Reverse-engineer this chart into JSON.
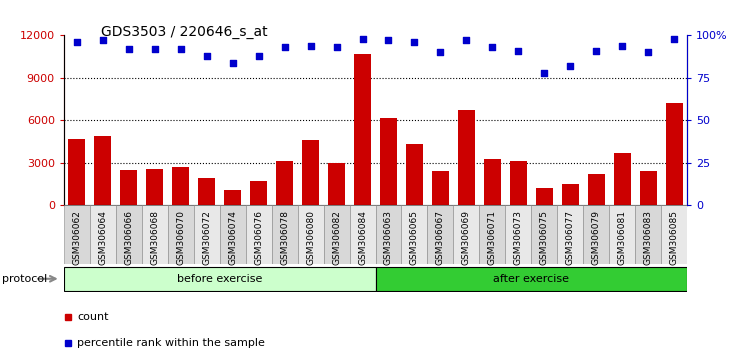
{
  "title": "GDS3503 / 220646_s_at",
  "samples": [
    "GSM306062",
    "GSM306064",
    "GSM306066",
    "GSM306068",
    "GSM306070",
    "GSM306072",
    "GSM306074",
    "GSM306076",
    "GSM306078",
    "GSM306080",
    "GSM306082",
    "GSM306084",
    "GSM306063",
    "GSM306065",
    "GSM306067",
    "GSM306069",
    "GSM306071",
    "GSM306073",
    "GSM306075",
    "GSM306077",
    "GSM306079",
    "GSM306081",
    "GSM306083",
    "GSM306085"
  ],
  "counts": [
    4700,
    4900,
    2500,
    2600,
    2700,
    1900,
    1100,
    1700,
    3100,
    4600,
    3000,
    10700,
    6200,
    4300,
    2400,
    6700,
    3300,
    3100,
    1200,
    1500,
    2200,
    3700,
    2400,
    7200
  ],
  "percentiles": [
    96,
    97,
    92,
    92,
    92,
    88,
    84,
    88,
    93,
    94,
    93,
    98,
    97,
    96,
    90,
    97,
    93,
    91,
    78,
    82,
    91,
    94,
    90,
    98
  ],
  "before_count": 12,
  "after_count": 12,
  "bar_color": "#cc0000",
  "dot_color": "#0000cc",
  "before_color": "#ccffcc",
  "after_color": "#33cc33",
  "label_bg_color": "#d0d0d0",
  "left_ylim": [
    0,
    12000
  ],
  "right_ylim": [
    0,
    100
  ],
  "left_yticks": [
    0,
    3000,
    6000,
    9000,
    12000
  ],
  "right_yticks": [
    0,
    25,
    50,
    75,
    100
  ],
  "right_yticklabels": [
    "0",
    "25",
    "50",
    "75",
    "100%"
  ],
  "protocol_label": "protocol",
  "before_label": "before exercise",
  "after_label": "after exercise",
  "legend_count": "count",
  "legend_percentile": "percentile rank within the sample"
}
